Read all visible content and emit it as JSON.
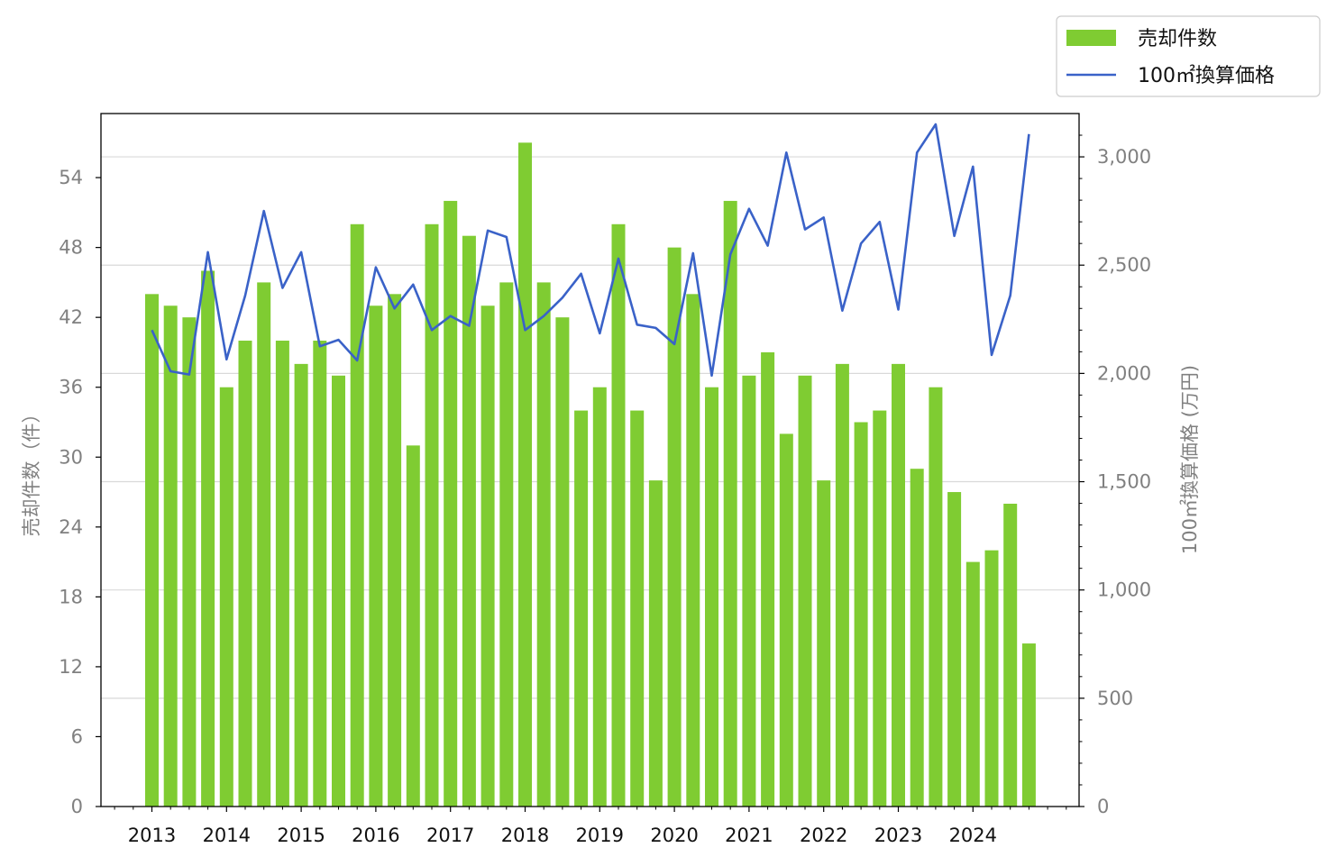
{
  "chart_data": {
    "type": "bar",
    "legend_position": "top-right",
    "grid": "horizontal (right axis)",
    "x_tick_labels": [
      "2013",
      "2014",
      "2015",
      "2016",
      "2017",
      "2018",
      "2019",
      "2020",
      "2021",
      "2022",
      "2023",
      "2024"
    ],
    "periods_per_year": 4,
    "left_axis": {
      "label": "売却件数（件）",
      "ylim": [
        0,
        59.5
      ],
      "ticks": [
        0,
        6,
        12,
        18,
        24,
        30,
        36,
        42,
        48,
        54
      ]
    },
    "right_axis": {
      "label": "100㎡換算価格 (万円)",
      "ylim": [
        0,
        3200
      ],
      "ticks": [
        0,
        500,
        1000,
        1500,
        2000,
        2500,
        3000
      ],
      "tick_labels": [
        "0",
        "500",
        "1,000",
        "1,500",
        "2,000",
        "2,500",
        "3,000"
      ]
    },
    "series": [
      {
        "name": "売却件数",
        "type": "bar",
        "axis": "left",
        "color": "#7fcc32",
        "values": [
          44,
          43,
          42,
          46,
          36,
          40,
          45,
          40,
          38,
          40,
          37,
          50,
          43,
          44,
          31,
          50,
          52,
          49,
          43,
          45,
          57,
          45,
          42,
          34,
          36,
          50,
          34,
          28,
          48,
          44,
          36,
          52,
          37,
          39,
          32,
          37,
          28,
          38,
          33,
          34,
          38,
          29,
          36,
          27,
          21,
          22,
          26,
          14
        ]
      },
      {
        "name": "100㎡換算価格",
        "type": "line",
        "axis": "right",
        "color": "#3a62c8",
        "values": [
          2200,
          2010,
          1995,
          2560,
          2065,
          2360,
          2750,
          2395,
          2560,
          2125,
          2155,
          2060,
          2490,
          2300,
          2410,
          2200,
          2265,
          2220,
          2660,
          2630,
          2200,
          2265,
          2350,
          2460,
          2185,
          2530,
          2225,
          2210,
          2135,
          2555,
          1990,
          2550,
          2760,
          2590,
          3020,
          2665,
          2720,
          2290,
          2600,
          2700,
          2295,
          3020,
          3150,
          2635,
          2955,
          2085,
          2360,
          3105
        ]
      }
    ]
  }
}
